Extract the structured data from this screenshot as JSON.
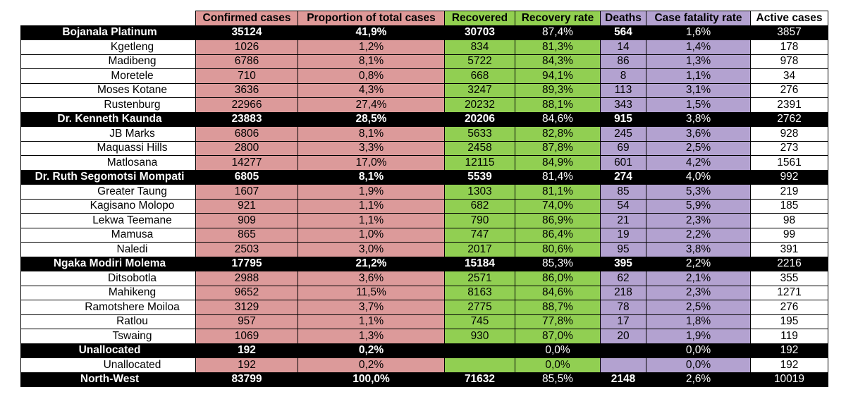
{
  "chart_data": {
    "type": "table",
    "columns": [
      "",
      "Confirmed cases",
      "Proportion of total cases",
      "Recovered",
      "Recovery rate",
      "Deaths",
      "Case fatality rate",
      "Active cases"
    ],
    "colors": {
      "cases": "#df9998",
      "recovered": "#92d050",
      "deaths": "#b3a2d0",
      "district_row": "#000000"
    },
    "rows": [
      {
        "kind": "district",
        "name": "Bojanala Platinum",
        "confirmed": "35124",
        "proportion": "41,9%",
        "recovered": "30703",
        "recovery_rate": "87,4%",
        "deaths": "564",
        "cfr": "1,6%",
        "active": "3857"
      },
      {
        "kind": "sub",
        "name": "Kgetleng",
        "confirmed": "1026",
        "proportion": "1,2%",
        "recovered": "834",
        "recovery_rate": "81,3%",
        "deaths": "14",
        "cfr": "1,4%",
        "active": "178"
      },
      {
        "kind": "sub",
        "name": "Madibeng",
        "confirmed": "6786",
        "proportion": "8,1%",
        "recovered": "5722",
        "recovery_rate": "84,3%",
        "deaths": "86",
        "cfr": "1,3%",
        "active": "978"
      },
      {
        "kind": "sub",
        "name": "Moretele",
        "confirmed": "710",
        "proportion": "0,8%",
        "recovered": "668",
        "recovery_rate": "94,1%",
        "deaths": "8",
        "cfr": "1,1%",
        "active": "34"
      },
      {
        "kind": "sub",
        "name": "Moses Kotane",
        "confirmed": "3636",
        "proportion": "4,3%",
        "recovered": "3247",
        "recovery_rate": "89,3%",
        "deaths": "113",
        "cfr": "3,1%",
        "active": "276"
      },
      {
        "kind": "sub",
        "name": "Rustenburg",
        "confirmed": "22966",
        "proportion": "27,4%",
        "recovered": "20232",
        "recovery_rate": "88,1%",
        "deaths": "343",
        "cfr": "1,5%",
        "active": "2391"
      },
      {
        "kind": "district",
        "name": "Dr. Kenneth Kaunda",
        "confirmed": "23883",
        "proportion": "28,5%",
        "recovered": "20206",
        "recovery_rate": "84,6%",
        "deaths": "915",
        "cfr": "3,8%",
        "active": "2762"
      },
      {
        "kind": "sub",
        "name": "JB Marks",
        "confirmed": "6806",
        "proportion": "8,1%",
        "recovered": "5633",
        "recovery_rate": "82,8%",
        "deaths": "245",
        "cfr": "3,6%",
        "active": "928"
      },
      {
        "kind": "sub",
        "name": "Maquassi Hills",
        "confirmed": "2800",
        "proportion": "3,3%",
        "recovered": "2458",
        "recovery_rate": "87,8%",
        "deaths": "69",
        "cfr": "2,5%",
        "active": "273"
      },
      {
        "kind": "sub",
        "name": "Matlosana",
        "confirmed": "14277",
        "proportion": "17,0%",
        "recovered": "12115",
        "recovery_rate": "84,9%",
        "deaths": "601",
        "cfr": "4,2%",
        "active": "1561"
      },
      {
        "kind": "district",
        "name": "Dr. Ruth Segomotsi Mompati",
        "confirmed": "6805",
        "proportion": "8,1%",
        "recovered": "5539",
        "recovery_rate": "81,4%",
        "deaths": "274",
        "cfr": "4,0%",
        "active": "992"
      },
      {
        "kind": "sub",
        "name": "Greater Taung",
        "confirmed": "1607",
        "proportion": "1,9%",
        "recovered": "1303",
        "recovery_rate": "81,1%",
        "deaths": "85",
        "cfr": "5,3%",
        "active": "219"
      },
      {
        "kind": "sub",
        "name": "Kagisano Molopo",
        "confirmed": "921",
        "proportion": "1,1%",
        "recovered": "682",
        "recovery_rate": "74,0%",
        "deaths": "54",
        "cfr": "5,9%",
        "active": "185"
      },
      {
        "kind": "sub",
        "name": "Lekwa Teemane",
        "confirmed": "909",
        "proportion": "1,1%",
        "recovered": "790",
        "recovery_rate": "86,9%",
        "deaths": "21",
        "cfr": "2,3%",
        "active": "98"
      },
      {
        "kind": "sub",
        "name": "Mamusa",
        "confirmed": "865",
        "proportion": "1,0%",
        "recovered": "747",
        "recovery_rate": "86,4%",
        "deaths": "19",
        "cfr": "2,2%",
        "active": "99"
      },
      {
        "kind": "sub",
        "name": "Naledi",
        "confirmed": "2503",
        "proportion": "3,0%",
        "recovered": "2017",
        "recovery_rate": "80,6%",
        "deaths": "95",
        "cfr": "3,8%",
        "active": "391"
      },
      {
        "kind": "district",
        "name": "Ngaka Modiri Molema",
        "confirmed": "17795",
        "proportion": "21,2%",
        "recovered": "15184",
        "recovery_rate": "85,3%",
        "deaths": "395",
        "cfr": "2,2%",
        "active": "2216"
      },
      {
        "kind": "sub",
        "name": "Ditsobotla",
        "confirmed": "2988",
        "proportion": "3,6%",
        "recovered": "2571",
        "recovery_rate": "86,0%",
        "deaths": "62",
        "cfr": "2,1%",
        "active": "355"
      },
      {
        "kind": "sub",
        "name": "Mahikeng",
        "confirmed": "9652",
        "proportion": "11,5%",
        "recovered": "8163",
        "recovery_rate": "84,6%",
        "deaths": "218",
        "cfr": "2,3%",
        "active": "1271"
      },
      {
        "kind": "sub",
        "name": "Ramotshere Moiloa",
        "confirmed": "3129",
        "proportion": "3,7%",
        "recovered": "2775",
        "recovery_rate": "88,7%",
        "deaths": "78",
        "cfr": "2,5%",
        "active": "276"
      },
      {
        "kind": "sub",
        "name": "Ratlou",
        "confirmed": "957",
        "proportion": "1,1%",
        "recovered": "745",
        "recovery_rate": "77,8%",
        "deaths": "17",
        "cfr": "1,8%",
        "active": "195"
      },
      {
        "kind": "sub",
        "name": "Tswaing",
        "confirmed": "1069",
        "proportion": "1,3%",
        "recovered": "930",
        "recovery_rate": "87,0%",
        "deaths": "20",
        "cfr": "1,9%",
        "active": "119"
      },
      {
        "kind": "district",
        "name": "Unallocated",
        "confirmed": "192",
        "proportion": "0,2%",
        "recovered": "",
        "recovery_rate": "0,0%",
        "deaths": "",
        "cfr": "0,0%",
        "active": "192"
      },
      {
        "kind": "sub",
        "name": "Unallocated",
        "confirmed": "192",
        "proportion": "0,2%",
        "recovered": "",
        "recovery_rate": "0,0%",
        "deaths": "",
        "cfr": "0,0%",
        "active": "192"
      },
      {
        "kind": "district",
        "name": "North-West",
        "confirmed": "83799",
        "proportion": "100,0%",
        "recovered": "71632",
        "recovery_rate": "85,5%",
        "deaths": "2148",
        "cfr": "2,6%",
        "active": "10019"
      }
    ]
  }
}
